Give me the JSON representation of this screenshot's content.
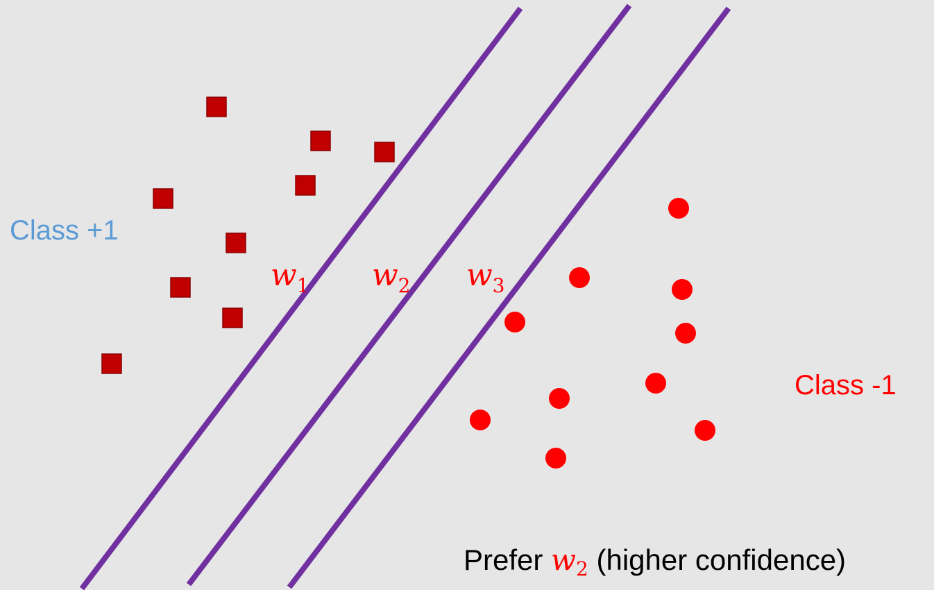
{
  "colors": {
    "background": "#e7e6e6",
    "line": "#7030a0",
    "square": "#c00000",
    "circle": "#ff0000",
    "class_pos_text": "#5b9bd5",
    "class_neg_text": "#ff0000",
    "caption_text": "#000000",
    "w_text": "#ff0000"
  },
  "labels": {
    "class_pos": "Class +1",
    "class_neg": "Class -1"
  },
  "lines": [
    {
      "name": "w",
      "sub": "1"
    },
    {
      "name": "w",
      "sub": "2"
    },
    {
      "name": "w",
      "sub": "3"
    }
  ],
  "caption": {
    "prefix": "Prefer ",
    "w_name": "w",
    "w_sub": "2",
    "suffix": " (higher confidence)"
  }
}
